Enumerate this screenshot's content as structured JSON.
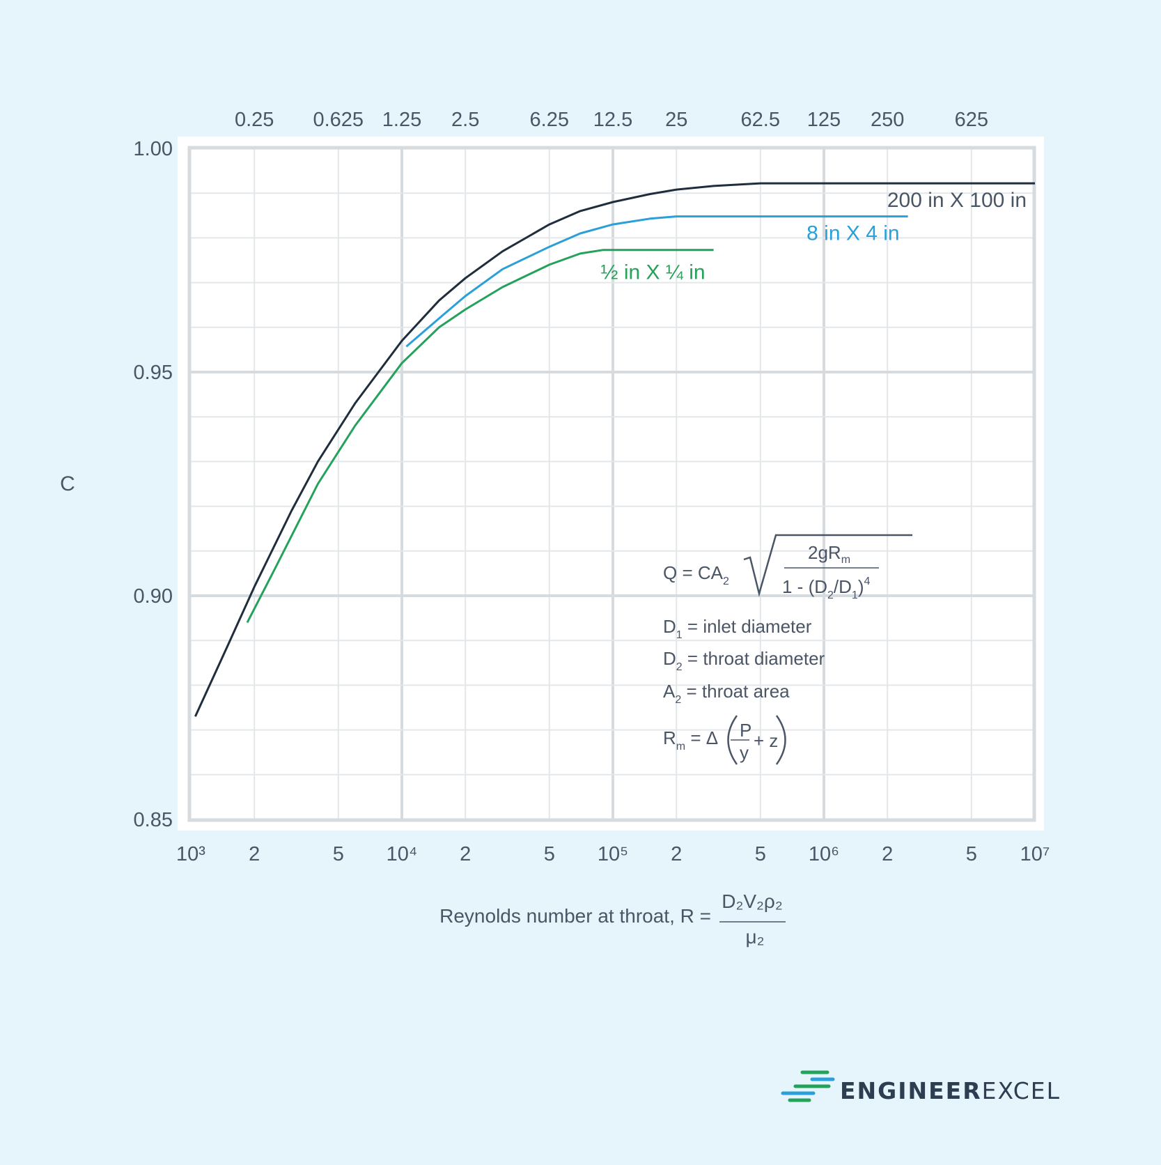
{
  "chart_data": {
    "type": "line",
    "title": "",
    "xlabel": "Reynolds number at throat, R =",
    "xlabel_fraction": {
      "numerator": "D₂V₂ρ₂",
      "denominator": "μ₂"
    },
    "ylabel": "C",
    "x_scale": "log",
    "xlim": [
      1000,
      10000000
    ],
    "ylim": [
      0.85,
      1.0
    ],
    "grid": true,
    "x_ticks": [
      {
        "value": 1000,
        "label": "10³"
      },
      {
        "value": 2000,
        "label": "2"
      },
      {
        "value": 5000,
        "label": "5"
      },
      {
        "value": 10000,
        "label": "10⁴"
      },
      {
        "value": 20000,
        "label": "2"
      },
      {
        "value": 50000,
        "label": "5"
      },
      {
        "value": 100000,
        "label": "10⁵"
      },
      {
        "value": 200000,
        "label": "2"
      },
      {
        "value": 500000,
        "label": "5"
      },
      {
        "value": 1000000,
        "label": "10⁶"
      },
      {
        "value": 2000000,
        "label": "2"
      },
      {
        "value": 5000000,
        "label": "5"
      },
      {
        "value": 10000000,
        "label": "10⁷"
      }
    ],
    "top_ticks": [
      {
        "value": 2000,
        "label": "0.25"
      },
      {
        "value": 5000,
        "label": "0.625"
      },
      {
        "value": 10000,
        "label": "1.25"
      },
      {
        "value": 20000,
        "label": "2.5"
      },
      {
        "value": 50000,
        "label": "6.25"
      },
      {
        "value": 100000,
        "label": "12.5"
      },
      {
        "value": 200000,
        "label": "25"
      },
      {
        "value": 500000,
        "label": "62.5"
      },
      {
        "value": 1000000,
        "label": "125"
      },
      {
        "value": 2000000,
        "label": "250"
      },
      {
        "value": 5000000,
        "label": "625"
      }
    ],
    "y_ticks": [
      {
        "value": 1.0,
        "label": "1.00"
      },
      {
        "value": 0.95,
        "label": "0.95"
      },
      {
        "value": 0.9,
        "label": "0.90"
      },
      {
        "value": 0.85,
        "label": "0.85"
      }
    ],
    "y_minor_step": 0.01,
    "series": [
      {
        "name": "200 in X 100 in",
        "color": "#1f2d3d",
        "points": [
          [
            1050,
            0.873
          ],
          [
            1500,
            0.889
          ],
          [
            2000,
            0.902
          ],
          [
            3000,
            0.919
          ],
          [
            4000,
            0.93
          ],
          [
            6000,
            0.943
          ],
          [
            10000,
            0.957
          ],
          [
            15000,
            0.966
          ],
          [
            20000,
            0.971
          ],
          [
            30000,
            0.977
          ],
          [
            50000,
            0.983
          ],
          [
            70000,
            0.986
          ],
          [
            100000,
            0.988
          ],
          [
            150000,
            0.9898
          ],
          [
            200000,
            0.9908
          ],
          [
            300000,
            0.9916
          ],
          [
            500000,
            0.9922
          ],
          [
            1000000,
            0.9922
          ],
          [
            10000000,
            0.9922
          ]
        ]
      },
      {
        "name": "8 in X 4 in",
        "color": "#2a9fd8",
        "points": [
          [
            10500,
            0.9557
          ],
          [
            15000,
            0.962
          ],
          [
            20000,
            0.967
          ],
          [
            30000,
            0.973
          ],
          [
            50000,
            0.978
          ],
          [
            70000,
            0.981
          ],
          [
            100000,
            0.983
          ],
          [
            150000,
            0.9843
          ],
          [
            200000,
            0.9848
          ],
          [
            500000,
            0.9848
          ],
          [
            2500000,
            0.9848
          ]
        ]
      },
      {
        "name": "½ in X ¼ in",
        "color": "#24a15a",
        "points": [
          [
            1850,
            0.894
          ],
          [
            2500,
            0.906
          ],
          [
            4000,
            0.925
          ],
          [
            6000,
            0.938
          ],
          [
            10000,
            0.952
          ],
          [
            15000,
            0.96
          ],
          [
            20000,
            0.964
          ],
          [
            30000,
            0.969
          ],
          [
            50000,
            0.974
          ],
          [
            70000,
            0.9765
          ],
          [
            90000,
            0.9773
          ],
          [
            300000,
            0.9773
          ]
        ]
      }
    ]
  },
  "formula": {
    "q_lhs": "Q = CA",
    "q_sub": "2",
    "num": "2gR",
    "num_sub": "m",
    "den_a": "1 - (D",
    "den_sub1": "2",
    "den_b": "/D",
    "den_sub2": "1",
    "den_c": ")",
    "den_sup": "4",
    "d1_a": "D",
    "d1_sub": "1",
    "d1_b": " = inlet diameter",
    "d2_a": "D",
    "d2_sub": "2",
    "d2_b": " =  throat diameter",
    "a2_a": "A",
    "a2_sub": "2",
    "a2_b": " = throat area",
    "rm_a": "R",
    "rm_sub": "m",
    "rm_b": " = Δ",
    "rm_num": "P",
    "rm_den": "y",
    "rm_c": "+ z"
  },
  "brand": {
    "name_bold": "ENGINEER",
    "name_regular": "EXCEL",
    "colors": {
      "green": "#24a15a",
      "blue": "#2a9fd8",
      "dark": "#2c3e50"
    }
  }
}
